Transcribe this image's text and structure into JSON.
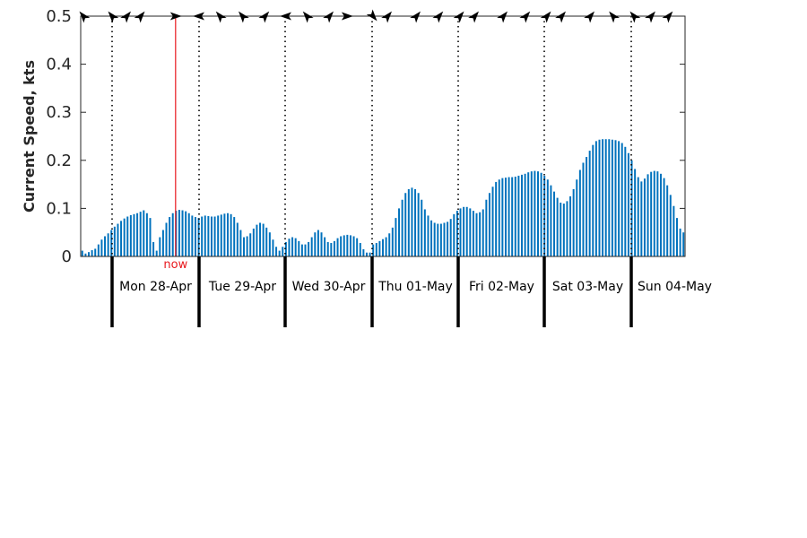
{
  "chart_data": {
    "type": "bar",
    "title": "",
    "ylabel": "Current Speed, kts",
    "ylim": [
      0,
      0.5
    ],
    "yticks": [
      0,
      0.1,
      0.2,
      0.3,
      0.4,
      0.5
    ],
    "ytick_labels": [
      "0",
      "0.1",
      "0.2",
      "0.3",
      "0.4",
      "0.5"
    ],
    "bar_color": "#0072bd",
    "now_color": "#e8181d",
    "now_label": "now",
    "now_position_days": 0.73,
    "time_range_days": [
      -0.36,
      6.6
    ],
    "day_labels": [
      "Mon 28-Apr",
      "Tue 29-Apr",
      "Wed 30-Apr",
      "Thu 01-May",
      "Fri 02-May",
      "Sat 03-May",
      "Sun 04-May"
    ],
    "values": [
      0.012,
      0.006,
      0.009,
      0.013,
      0.016,
      0.025,
      0.035,
      0.042,
      0.048,
      0.055,
      0.062,
      0.068,
      0.074,
      0.079,
      0.083,
      0.086,
      0.088,
      0.09,
      0.093,
      0.096,
      0.09,
      0.08,
      0.03,
      0.012,
      0.04,
      0.055,
      0.07,
      0.082,
      0.09,
      0.095,
      0.097,
      0.096,
      0.094,
      0.09,
      0.085,
      0.082,
      0.08,
      0.083,
      0.085,
      0.084,
      0.083,
      0.083,
      0.085,
      0.087,
      0.089,
      0.09,
      0.088,
      0.082,
      0.07,
      0.055,
      0.04,
      0.042,
      0.048,
      0.058,
      0.066,
      0.07,
      0.068,
      0.06,
      0.05,
      0.035,
      0.02,
      0.012,
      0.02,
      0.03,
      0.037,
      0.04,
      0.038,
      0.032,
      0.025,
      0.025,
      0.03,
      0.04,
      0.05,
      0.055,
      0.05,
      0.04,
      0.03,
      0.028,
      0.032,
      0.038,
      0.042,
      0.044,
      0.045,
      0.044,
      0.042,
      0.038,
      0.028,
      0.015,
      0.008,
      0.008,
      0.025,
      0.028,
      0.032,
      0.036,
      0.04,
      0.048,
      0.06,
      0.08,
      0.1,
      0.118,
      0.132,
      0.14,
      0.143,
      0.14,
      0.132,
      0.118,
      0.098,
      0.085,
      0.075,
      0.07,
      0.068,
      0.068,
      0.07,
      0.072,
      0.078,
      0.088,
      0.095,
      0.1,
      0.103,
      0.103,
      0.1,
      0.095,
      0.09,
      0.092,
      0.098,
      0.118,
      0.132,
      0.145,
      0.155,
      0.16,
      0.163,
      0.164,
      0.165,
      0.165,
      0.166,
      0.168,
      0.17,
      0.172,
      0.175,
      0.177,
      0.178,
      0.177,
      0.174,
      0.168,
      0.16,
      0.148,
      0.135,
      0.122,
      0.112,
      0.11,
      0.115,
      0.125,
      0.14,
      0.16,
      0.18,
      0.195,
      0.207,
      0.22,
      0.232,
      0.24,
      0.243,
      0.244,
      0.244,
      0.244,
      0.243,
      0.242,
      0.24,
      0.236,
      0.228,
      0.215,
      0.2,
      0.182,
      0.165,
      0.156,
      0.162,
      0.171,
      0.176,
      0.178,
      0.177,
      0.172,
      0.163,
      0.148,
      0.128,
      0.105,
      0.08,
      0.058,
      0.05
    ],
    "direction_arrows": [
      {
        "day": -0.33,
        "dir": "up-left"
      },
      {
        "day": 0.0,
        "dir": "up-left"
      },
      {
        "day": 0.17,
        "dir": "up-right"
      },
      {
        "day": 0.33,
        "dir": "up-right"
      },
      {
        "day": 0.73,
        "dir": "right"
      },
      {
        "day": 1.0,
        "dir": "left"
      },
      {
        "day": 1.24,
        "dir": "up-left"
      },
      {
        "day": 1.5,
        "dir": "up-left"
      },
      {
        "day": 1.76,
        "dir": "up-right"
      },
      {
        "day": 2.0,
        "dir": "left"
      },
      {
        "day": 2.24,
        "dir": "up-left"
      },
      {
        "day": 2.5,
        "dir": "up-right"
      },
      {
        "day": 2.7,
        "dir": "right"
      },
      {
        "day": 3.0,
        "dir": "down-right"
      },
      {
        "day": 3.17,
        "dir": "up-right"
      },
      {
        "day": 3.5,
        "dir": "up-right"
      },
      {
        "day": 3.76,
        "dir": "up-right"
      },
      {
        "day": 4.0,
        "dir": "up-right"
      },
      {
        "day": 4.17,
        "dir": "up-right"
      },
      {
        "day": 4.5,
        "dir": "up-right"
      },
      {
        "day": 4.76,
        "dir": "up-right"
      },
      {
        "day": 5.0,
        "dir": "up-right"
      },
      {
        "day": 5.17,
        "dir": "up-right"
      },
      {
        "day": 5.5,
        "dir": "up-right"
      },
      {
        "day": 5.76,
        "dir": "up-left"
      },
      {
        "day": 6.0,
        "dir": "up-left"
      },
      {
        "day": 6.2,
        "dir": "up-right"
      },
      {
        "day": 6.4,
        "dir": "up-right"
      }
    ]
  }
}
